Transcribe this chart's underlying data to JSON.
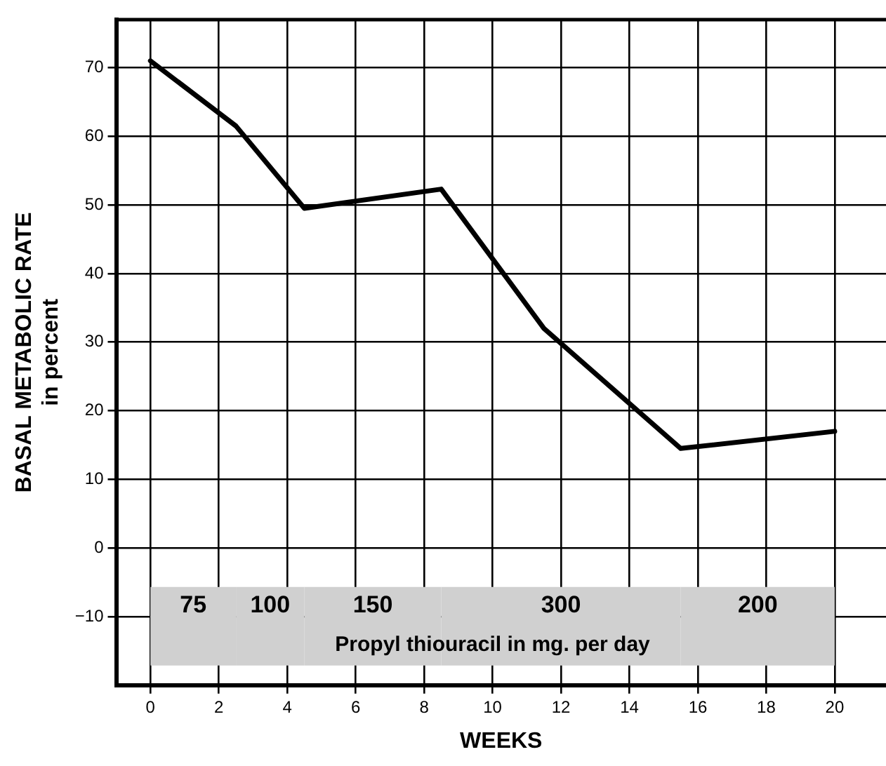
{
  "chart_data": {
    "type": "line",
    "xlabel": "WEEKS",
    "ylabel": "BASAL METABOLIC RATE\nin percent",
    "x": [
      0,
      2.5,
      4.5,
      8.5,
      11.5,
      15.5,
      20
    ],
    "series": [
      {
        "color": "#000000",
        "values": [
          71,
          61.5,
          49.5,
          52.3,
          32,
          14.5,
          17
        ]
      }
    ],
    "xlim": [
      -1,
      21.5
    ],
    "ylim": [
      -20,
      77
    ],
    "xticks": [
      0,
      2,
      4,
      6,
      8,
      10,
      12,
      14,
      16,
      18,
      20
    ],
    "yticks": [
      -10,
      0,
      10,
      20,
      30,
      40,
      50,
      60,
      70
    ],
    "grid": true,
    "legend": false,
    "marker": "none",
    "line_style": "solid",
    "bands": [
      {
        "axis": "x",
        "from": 0,
        "to": 2.5,
        "label": "75",
        "color": "#d0d0d0"
      },
      {
        "axis": "x",
        "from": 2.5,
        "to": 4.5,
        "label": "100",
        "color": "#d0d0d0"
      },
      {
        "axis": "x",
        "from": 4.5,
        "to": 8.5,
        "label": "150",
        "color": "#d0d0d0"
      },
      {
        "axis": "x",
        "from": 8.5,
        "to": 15.5,
        "label": "300",
        "color": "#d0d0d0"
      },
      {
        "axis": "x",
        "from": 15.5,
        "to": 20,
        "label": "200",
        "color": "#d0d0d0"
      }
    ],
    "annotations": [
      "Propyl thiouracil in mg. per day"
    ]
  }
}
